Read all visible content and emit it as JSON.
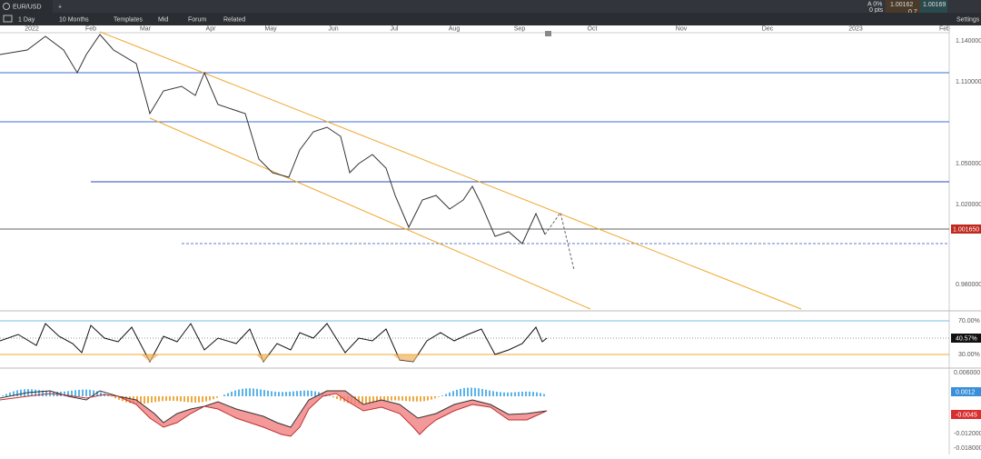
{
  "tab": {
    "symbol": "EUR/USD",
    "add": "+"
  },
  "quote": {
    "change_pct": "A 0%",
    "change_pts": "0 pts",
    "bid": "1.00162",
    "spread": "0.7",
    "ask": "1.00169"
  },
  "toolbar": {
    "interval": "1 Day",
    "range": "10 Months",
    "items": [
      "Templates",
      "Mid",
      "Forum",
      "Related"
    ],
    "settings": "Settings"
  },
  "time_axis": [
    "2022",
    "Feb",
    "Mar",
    "Apr",
    "May",
    "Jun",
    "Jul",
    "Aug",
    "Sep",
    "Oct",
    "Nov",
    "Dec",
    "2023",
    "Feb"
  ],
  "price_axis": {
    "ticks": [
      "1.140000",
      "1.110000",
      "1.050000",
      "1.020000",
      "0.980000"
    ],
    "current": "1.001650"
  },
  "rsi_axis": {
    "ticks": [
      "70.00%",
      "30.00%"
    ],
    "current": "40.57%"
  },
  "macd_axis": {
    "ticks": [
      "0.006000",
      "-0.012000",
      "-0.018000"
    ],
    "macd": "0.0012",
    "signal": "-0.0045"
  }
}
